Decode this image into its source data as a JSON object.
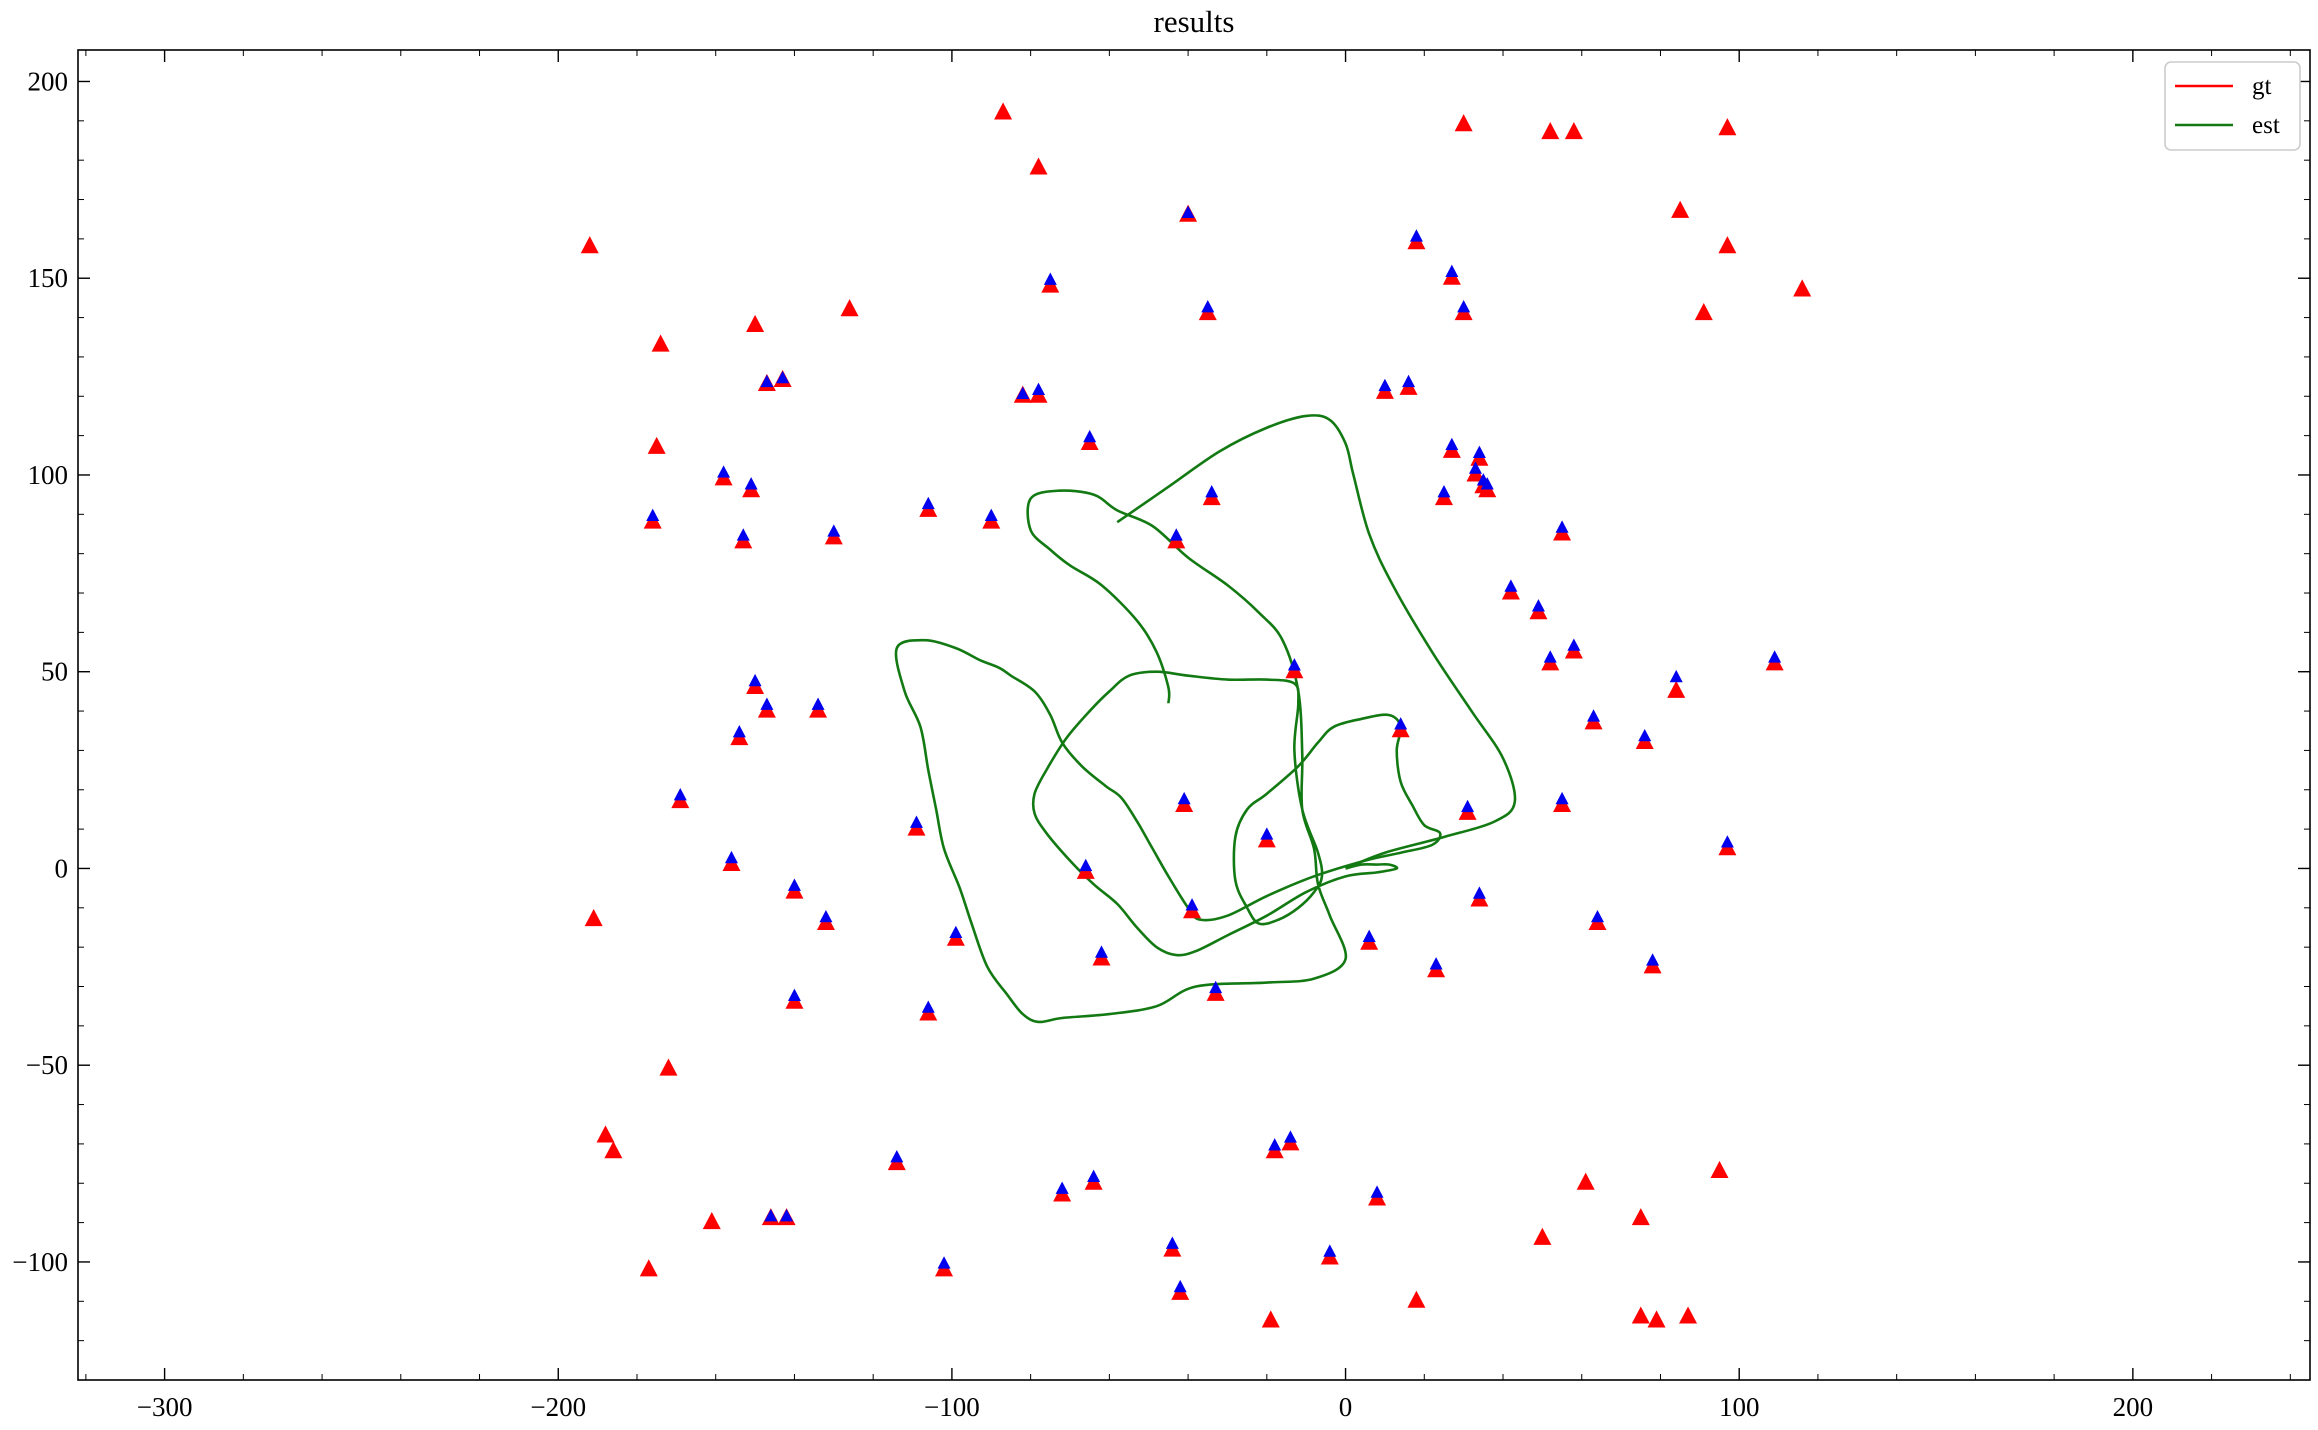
{
  "chart_data": {
    "type": "scatter",
    "title": "results",
    "xlabel": "",
    "ylabel": "",
    "xlim": [
      -322,
      245
    ],
    "ylim": [
      -130,
      208
    ],
    "xticks": [
      -300,
      -200,
      -100,
      0,
      100,
      200
    ],
    "yticks": [
      -100,
      -50,
      0,
      50,
      100,
      150,
      200
    ],
    "xtick_labels": [
      "−300",
      "−200",
      "−100",
      "0",
      "100",
      "200"
    ],
    "ytick_labels": [
      "−100",
      "−50",
      "0",
      "50",
      "100",
      "150",
      "200"
    ],
    "grid": false,
    "legend": {
      "position": "top-right",
      "entries": [
        {
          "label": "gt",
          "color": "#ff0000"
        },
        {
          "label": "est",
          "color": "#137a13"
        }
      ]
    },
    "colors": {
      "gt_landmark": "#ff0000",
      "est_landmark": "#0000ee",
      "gt_traj": "#ff0000",
      "est_traj": "#137a13"
    },
    "gt_landmarks_unobserved": [
      [
        -192,
        158
      ],
      [
        -174,
        133
      ],
      [
        -175,
        107
      ],
      [
        -150,
        138
      ],
      [
        -126,
        142
      ],
      [
        -87,
        192
      ],
      [
        -78,
        178
      ],
      [
        30,
        189
      ],
      [
        52,
        187
      ],
      [
        58,
        187
      ],
      [
        97,
        188
      ],
      [
        85,
        167
      ],
      [
        97,
        158
      ],
      [
        91,
        141
      ],
      [
        116,
        147
      ],
      [
        -191,
        -13
      ],
      [
        -172,
        -51
      ],
      [
        -188,
        -68
      ],
      [
        -186,
        -72
      ],
      [
        -177,
        -102
      ],
      [
        -161,
        -90
      ],
      [
        -19,
        -115
      ],
      [
        18,
        -110
      ],
      [
        50,
        -94
      ],
      [
        61,
        -80
      ],
      [
        75,
        -89
      ],
      [
        95,
        -77
      ],
      [
        75,
        -114
      ],
      [
        79,
        -115
      ],
      [
        87,
        -114
      ]
    ],
    "observed_landmarks": [
      {
        "gt": [
          -40,
          166
        ],
        "est": [
          -40,
          166
        ]
      },
      {
        "gt": [
          18,
          159
        ],
        "est": [
          18,
          160
        ]
      },
      {
        "gt": [
          27,
          150
        ],
        "est": [
          27,
          151
        ]
      },
      {
        "gt": [
          -75,
          148
        ],
        "est": [
          -75,
          149
        ]
      },
      {
        "gt": [
          -35,
          141
        ],
        "est": [
          -35,
          142
        ]
      },
      {
        "gt": [
          30,
          141
        ],
        "est": [
          30,
          142
        ]
      },
      {
        "gt": [
          -147,
          123
        ],
        "est": [
          -147,
          123
        ]
      },
      {
        "gt": [
          -143,
          124
        ],
        "est": [
          -143,
          124
        ]
      },
      {
        "gt": [
          -82,
          120
        ],
        "est": [
          -82,
          120
        ]
      },
      {
        "gt": [
          -78,
          120
        ],
        "est": [
          -78,
          121
        ]
      },
      {
        "gt": [
          10,
          121
        ],
        "est": [
          10,
          122
        ]
      },
      {
        "gt": [
          16,
          122
        ],
        "est": [
          16,
          123
        ]
      },
      {
        "gt": [
          -65,
          108
        ],
        "est": [
          -65,
          109
        ]
      },
      {
        "gt": [
          27,
          106
        ],
        "est": [
          27,
          107
        ]
      },
      {
        "gt": [
          34,
          104
        ],
        "est": [
          34,
          105
        ]
      },
      {
        "gt": [
          33,
          100
        ],
        "est": [
          33,
          101
        ]
      },
      {
        "gt": [
          -158,
          99
        ],
        "est": [
          -158,
          100
        ]
      },
      {
        "gt": [
          -151,
          96
        ],
        "est": [
          -151,
          97
        ]
      },
      {
        "gt": [
          35,
          97
        ],
        "est": [
          35,
          98
        ]
      },
      {
        "gt": [
          36,
          96
        ],
        "est": [
          36,
          97
        ]
      },
      {
        "gt": [
          25,
          94
        ],
        "est": [
          25,
          95
        ]
      },
      {
        "gt": [
          -34,
          94
        ],
        "est": [
          -34,
          95
        ]
      },
      {
        "gt": [
          -176,
          88
        ],
        "est": [
          -176,
          89
        ]
      },
      {
        "gt": [
          -106,
          91
        ],
        "est": [
          -106,
          92
        ]
      },
      {
        "gt": [
          -90,
          88
        ],
        "est": [
          -90,
          89
        ]
      },
      {
        "gt": [
          -153,
          83
        ],
        "est": [
          -153,
          84
        ]
      },
      {
        "gt": [
          -130,
          84
        ],
        "est": [
          -130,
          85
        ]
      },
      {
        "gt": [
          -43,
          83
        ],
        "est": [
          -43,
          84
        ]
      },
      {
        "gt": [
          55,
          85
        ],
        "est": [
          55,
          86
        ]
      },
      {
        "gt": [
          42,
          70
        ],
        "est": [
          42,
          71
        ]
      },
      {
        "gt": [
          49,
          65
        ],
        "est": [
          49,
          66
        ]
      },
      {
        "gt": [
          58,
          55
        ],
        "est": [
          58,
          56
        ]
      },
      {
        "gt": [
          52,
          52
        ],
        "est": [
          52,
          53
        ]
      },
      {
        "gt": [
          109,
          52
        ],
        "est": [
          109,
          53
        ]
      },
      {
        "gt": [
          -13,
          50
        ],
        "est": [
          -13,
          51
        ]
      },
      {
        "gt": [
          84,
          45
        ],
        "est": [
          84,
          48
        ]
      },
      {
        "gt": [
          -150,
          46
        ],
        "est": [
          -150,
          47
        ]
      },
      {
        "gt": [
          -147,
          40
        ],
        "est": [
          -147,
          41
        ]
      },
      {
        "gt": [
          -134,
          40
        ],
        "est": [
          -134,
          41
        ]
      },
      {
        "gt": [
          63,
          37
        ],
        "est": [
          63,
          38
        ]
      },
      {
        "gt": [
          14,
          35
        ],
        "est": [
          14,
          36
        ]
      },
      {
        "gt": [
          -154,
          33
        ],
        "est": [
          -154,
          34
        ]
      },
      {
        "gt": [
          76,
          32
        ],
        "est": [
          76,
          33
        ]
      },
      {
        "gt": [
          -169,
          17
        ],
        "est": [
          -169,
          18
        ]
      },
      {
        "gt": [
          -41,
          16
        ],
        "est": [
          -41,
          17
        ]
      },
      {
        "gt": [
          55,
          16
        ],
        "est": [
          55,
          17
        ]
      },
      {
        "gt": [
          31,
          14
        ],
        "est": [
          31,
          15
        ]
      },
      {
        "gt": [
          -109,
          10
        ],
        "est": [
          -109,
          11
        ]
      },
      {
        "gt": [
          -20,
          7
        ],
        "est": [
          -20,
          8
        ]
      },
      {
        "gt": [
          97,
          5
        ],
        "est": [
          97,
          6
        ]
      },
      {
        "gt": [
          -156,
          1
        ],
        "est": [
          -156,
          2
        ]
      },
      {
        "gt": [
          -66,
          -1
        ],
        "est": [
          -66,
          0
        ]
      },
      {
        "gt": [
          -140,
          -6
        ],
        "est": [
          -140,
          -5
        ]
      },
      {
        "gt": [
          34,
          -8
        ],
        "est": [
          34,
          -7
        ]
      },
      {
        "gt": [
          -39,
          -11
        ],
        "est": [
          -39,
          -10
        ]
      },
      {
        "gt": [
          -132,
          -14
        ],
        "est": [
          -132,
          -13
        ]
      },
      {
        "gt": [
          64,
          -14
        ],
        "est": [
          64,
          -13
        ]
      },
      {
        "gt": [
          -99,
          -18
        ],
        "est": [
          -99,
          -17
        ]
      },
      {
        "gt": [
          6,
          -19
        ],
        "est": [
          6,
          -18
        ]
      },
      {
        "gt": [
          -62,
          -23
        ],
        "est": [
          -62,
          -22
        ]
      },
      {
        "gt": [
          23,
          -26
        ],
        "est": [
          23,
          -25
        ]
      },
      {
        "gt": [
          78,
          -25
        ],
        "est": [
          78,
          -24
        ]
      },
      {
        "gt": [
          -33,
          -32
        ],
        "est": [
          -33,
          -31
        ]
      },
      {
        "gt": [
          -140,
          -34
        ],
        "est": [
          -140,
          -33
        ]
      },
      {
        "gt": [
          -106,
          -37
        ],
        "est": [
          -106,
          -36
        ]
      },
      {
        "gt": [
          -14,
          -70
        ],
        "est": [
          -14,
          -69
        ]
      },
      {
        "gt": [
          -18,
          -72
        ],
        "est": [
          -18,
          -71
        ]
      },
      {
        "gt": [
          -114,
          -75
        ],
        "est": [
          -114,
          -74
        ]
      },
      {
        "gt": [
          -64,
          -80
        ],
        "est": [
          -64,
          -79
        ]
      },
      {
        "gt": [
          -72,
          -83
        ],
        "est": [
          -72,
          -82
        ]
      },
      {
        "gt": [
          8,
          -84
        ],
        "est": [
          8,
          -83
        ]
      },
      {
        "gt": [
          -146,
          -89
        ],
        "est": [
          -146,
          -89
        ]
      },
      {
        "gt": [
          -142,
          -89
        ],
        "est": [
          -142,
          -89
        ]
      },
      {
        "gt": [
          -44,
          -97
        ],
        "est": [
          -44,
          -96
        ]
      },
      {
        "gt": [
          -4,
          -99
        ],
        "est": [
          -4,
          -98
        ]
      },
      {
        "gt": [
          -102,
          -102
        ],
        "est": [
          -102,
          -101
        ]
      },
      {
        "gt": [
          -42,
          -108
        ],
        "est": [
          -42,
          -107
        ]
      }
    ],
    "est_trajectory": [
      [
        0,
        0
      ],
      [
        4,
        1
      ],
      [
        8,
        1
      ],
      [
        11,
        1
      ],
      [
        13,
        0
      ],
      [
        8,
        -1
      ],
      [
        0,
        -2
      ],
      [
        -10,
        -6
      ],
      [
        -20,
        -12
      ],
      [
        -30,
        -17
      ],
      [
        -38,
        -21
      ],
      [
        -43,
        -22
      ],
      [
        -48,
        -20
      ],
      [
        -53,
        -15
      ],
      [
        -58,
        -9
      ],
      [
        -64,
        -4
      ],
      [
        -70,
        2
      ],
      [
        -76,
        9
      ],
      [
        -79,
        14
      ],
      [
        -79,
        19
      ],
      [
        -76,
        25
      ],
      [
        -71,
        33
      ],
      [
        -65,
        40
      ],
      [
        -60,
        45
      ],
      [
        -55,
        49
      ],
      [
        -48,
        50
      ],
      [
        -40,
        49
      ],
      [
        -30,
        48
      ],
      [
        -20,
        48
      ],
      [
        -13,
        47
      ],
      [
        -12,
        42
      ],
      [
        -13,
        30
      ],
      [
        -11,
        15
      ],
      [
        -7,
        4
      ],
      [
        -6,
        -2
      ],
      [
        -8,
        -6
      ],
      [
        -12,
        -10
      ],
      [
        -17,
        -13
      ],
      [
        -22,
        -14
      ],
      [
        -25,
        -10
      ],
      [
        -28,
        -3
      ],
      [
        -28,
        8
      ],
      [
        -25,
        15
      ],
      [
        -20,
        19
      ],
      [
        -12,
        26
      ],
      [
        -7,
        32
      ],
      [
        -3,
        36
      ],
      [
        4,
        38
      ],
      [
        11,
        39
      ],
      [
        14,
        36
      ],
      [
        13,
        30
      ],
      [
        14,
        22
      ],
      [
        17,
        16
      ],
      [
        20,
        11
      ],
      [
        24,
        9
      ],
      [
        22,
        6
      ],
      [
        14,
        4
      ],
      [
        5,
        2
      ],
      [
        -8,
        -2
      ],
      [
        -20,
        -7
      ],
      [
        -30,
        -12
      ],
      [
        -37,
        -13
      ],
      [
        -40,
        -10
      ],
      [
        -45,
        -2
      ],
      [
        -49,
        5
      ],
      [
        -53,
        12
      ],
      [
        -57,
        18
      ],
      [
        -61,
        21
      ],
      [
        -67,
        26
      ],
      [
        -72,
        32
      ],
      [
        -75,
        39
      ],
      [
        -79,
        45
      ],
      [
        -85,
        49
      ],
      [
        -88,
        51
      ],
      [
        -93,
        53
      ],
      [
        -99,
        56
      ],
      [
        -107,
        58
      ],
      [
        -114,
        56
      ],
      [
        -112,
        45
      ],
      [
        -108,
        36
      ],
      [
        -106,
        25
      ],
      [
        -104,
        15
      ],
      [
        -102,
        5
      ],
      [
        -98,
        -5
      ],
      [
        -95,
        -14
      ],
      [
        -91,
        -25
      ],
      [
        -86,
        -32
      ],
      [
        -82,
        -37
      ],
      [
        -78,
        -39
      ],
      [
        -72,
        -38
      ],
      [
        -60,
        -37
      ],
      [
        -48,
        -35
      ],
      [
        -38,
        -30
      ],
      [
        -20,
        -29
      ],
      [
        -8,
        -28
      ],
      [
        0,
        -23
      ],
      [
        -4,
        -12
      ],
      [
        -7,
        -4
      ],
      [
        -8,
        5
      ],
      [
        -11,
        15
      ],
      [
        -11,
        29
      ],
      [
        -12,
        45
      ],
      [
        -16,
        58
      ],
      [
        -22,
        65
      ],
      [
        -30,
        72
      ],
      [
        -40,
        79
      ],
      [
        -49,
        87
      ],
      [
        -58,
        91
      ],
      [
        -64,
        95
      ],
      [
        -73,
        96
      ],
      [
        -80,
        94
      ],
      [
        -80,
        86
      ],
      [
        -75,
        81
      ],
      [
        -70,
        77
      ],
      [
        -62,
        72
      ],
      [
        -53,
        63
      ],
      [
        -48,
        55
      ],
      [
        -45,
        46
      ],
      [
        -45,
        42
      ]
    ],
    "est_trajectory_outer": [
      [
        0,
        0
      ],
      [
        10,
        4
      ],
      [
        25,
        8
      ],
      [
        38,
        12
      ],
      [
        43,
        17
      ],
      [
        40,
        28
      ],
      [
        32,
        40
      ],
      [
        22,
        55
      ],
      [
        12,
        72
      ],
      [
        6,
        85
      ],
      [
        2,
        100
      ],
      [
        0,
        108
      ],
      [
        -4,
        114
      ],
      [
        -10,
        115
      ],
      [
        -20,
        112
      ],
      [
        -32,
        106
      ],
      [
        -45,
        97
      ],
      [
        -58,
        88
      ]
    ]
  }
}
